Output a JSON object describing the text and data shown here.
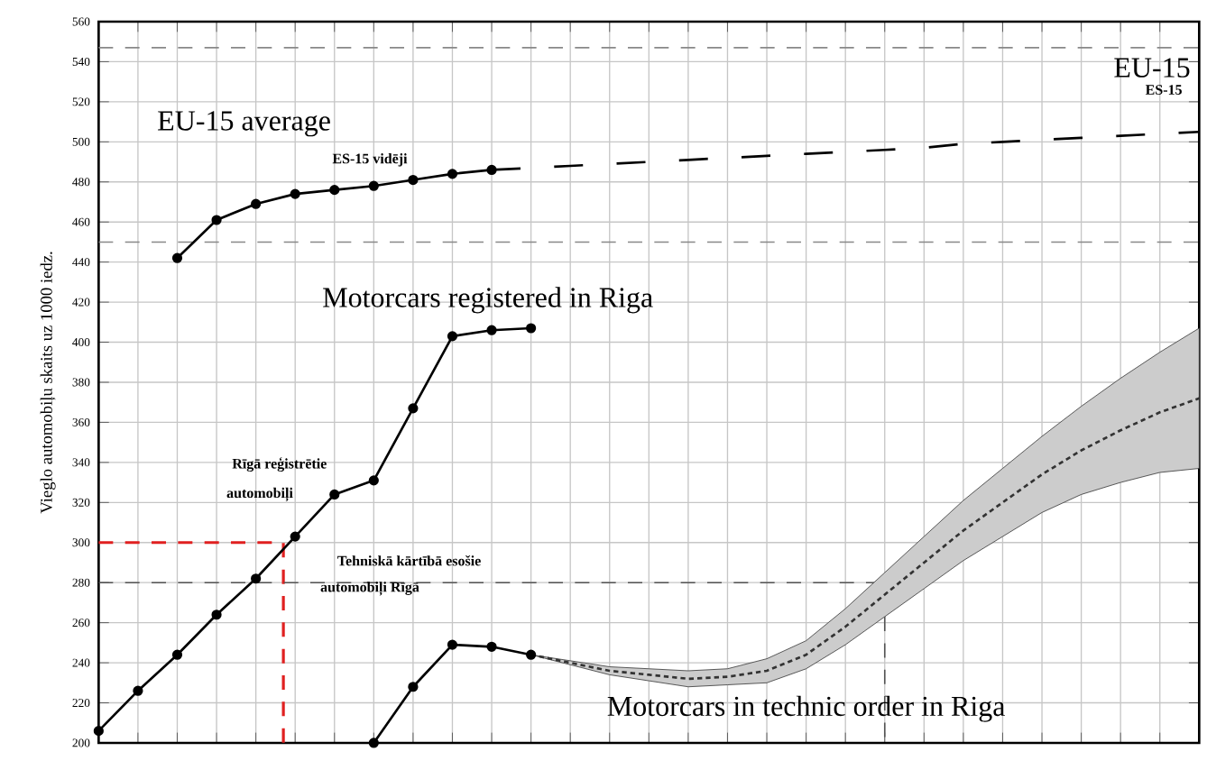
{
  "chart_data": {
    "type": "line",
    "ylabel": "Vieglo automobiļu skaits uz 1000 iedz.",
    "categories": [
      null,
      null,
      null,
      null,
      null,
      null,
      null,
      null,
      null,
      null,
      null,
      null,
      null,
      null,
      null,
      null,
      null,
      null,
      null,
      null,
      null,
      null,
      null,
      null,
      null,
      null,
      null,
      null,
      null
    ],
    "ylim": [
      200,
      560
    ],
    "yticks": [
      200,
      220,
      240,
      260,
      280,
      300,
      320,
      340,
      360,
      380,
      400,
      420,
      440,
      460,
      480,
      500,
      520,
      540,
      560
    ],
    "grid": true,
    "series": [
      {
        "color": "#000000",
        "marker": "circle",
        "line_style": "solid",
        "values": [
          null,
          null,
          442,
          461,
          469,
          474,
          476,
          478,
          481,
          484,
          486,
          null,
          null,
          null,
          null,
          null,
          null,
          null,
          null,
          null,
          null,
          null,
          null,
          null,
          null,
          null,
          null,
          null,
          null
        ]
      },
      {
        "color": "#000000",
        "marker": "none",
        "line_style": "dashed",
        "values": [
          null,
          null,
          null,
          null,
          null,
          null,
          null,
          null,
          null,
          null,
          486,
          487,
          488,
          489,
          490,
          491,
          492,
          493,
          494,
          495,
          496,
          497,
          499,
          500,
          501,
          502,
          503,
          504,
          505
        ]
      },
      {
        "color": "#000000",
        "marker": "circle",
        "line_style": "solid",
        "values": [
          206,
          226,
          244,
          264,
          282,
          303,
          324,
          331,
          367,
          403,
          406,
          407,
          null,
          null,
          null,
          null,
          null,
          null,
          null,
          null,
          null,
          null,
          null,
          null,
          null,
          null,
          null,
          null,
          null
        ]
      },
      {
        "color": "#000000",
        "marker": "circle",
        "line_style": "solid",
        "values": [
          null,
          null,
          null,
          null,
          null,
          null,
          null,
          200,
          228,
          249,
          248,
          244,
          null,
          null,
          null,
          null,
          null,
          null,
          null,
          null,
          null,
          null,
          null,
          null,
          null,
          null,
          null,
          null,
          null
        ]
      },
      {
        "color": "#333333",
        "marker": "none",
        "line_style": "dotted",
        "values": [
          null,
          null,
          null,
          null,
          null,
          null,
          null,
          null,
          null,
          null,
          null,
          244,
          240,
          236,
          234,
          232,
          233,
          236,
          244,
          258,
          274,
          290,
          306,
          320,
          334,
          346,
          356,
          365,
          372
        ],
        "lower": [
          null,
          null,
          null,
          null,
          null,
          null,
          null,
          null,
          null,
          null,
          null,
          244,
          239,
          234,
          231,
          228,
          229,
          230,
          237,
          249,
          263,
          277,
          291,
          303,
          315,
          324,
          330,
          335,
          337
        ],
        "upper": [
          null,
          null,
          null,
          null,
          null,
          null,
          null,
          null,
          null,
          null,
          null,
          244,
          241,
          238,
          237,
          236,
          237,
          242,
          251,
          267,
          285,
          303,
          321,
          337,
          353,
          368,
          382,
          395,
          407
        ]
      }
    ],
    "ref_lines": [
      {
        "axis": "y",
        "value": 300,
        "color": "#e02020",
        "line_style": "dashed"
      },
      {
        "axis": "y",
        "value": 280,
        "color": "#555555",
        "line_style": "dashed"
      },
      {
        "axis": "y",
        "value": 450,
        "color": "#888888",
        "line_style": "dashed"
      },
      {
        "axis": "y",
        "value": 547,
        "color": "#888888",
        "line_style": "dashed"
      }
    ],
    "annotations": [
      "EU-15 average",
      "ES-15 vidēji",
      "Motorcars registered in Riga",
      "Rīgā reģistrētie",
      "automobiļi",
      "Tehniskā kārtībā esošie",
      "automobiļi Rīgā",
      "Motorcars in technic order in Riga",
      "EU-15",
      "ES-15"
    ]
  }
}
